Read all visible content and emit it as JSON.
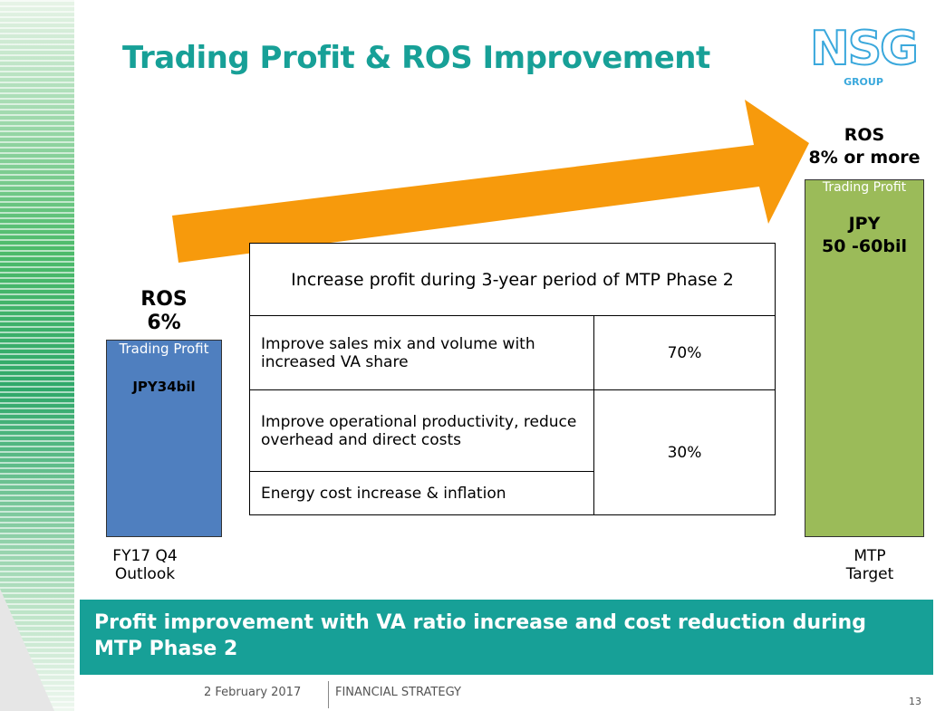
{
  "title": "Trading Profit & ROS Improvement",
  "logo": {
    "text": "NSG",
    "sub": "GROUP"
  },
  "left": {
    "ros_label": "ROS",
    "ros_value": "6%",
    "box_label": "Trading Profit",
    "box_value": "JPY34bil",
    "caption": [
      "FY17 Q4",
      "Outlook"
    ]
  },
  "right": {
    "ros_label": "ROS",
    "ros_value": "8% or more",
    "box_label": "Trading Profit",
    "box_value": [
      "JPY",
      "50 -60bil"
    ],
    "caption": [
      "MTP",
      "Target"
    ]
  },
  "table": {
    "header": "Increase profit during 3-year period of MTP Phase 2",
    "rows": [
      [
        "Improve sales mix and volume with increased VA share",
        "70%"
      ],
      [
        "Improve operational productivity, reduce overhead and direct costs",
        "30%"
      ],
      [
        "Energy cost increase & inflation"
      ]
    ]
  },
  "banner": "Profit improvement with VA ratio increase and cost reduction during MTP Phase 2",
  "footer": {
    "date": "2 February 2017",
    "section": "FINANCIAL STRATEGY",
    "page": "13"
  }
}
